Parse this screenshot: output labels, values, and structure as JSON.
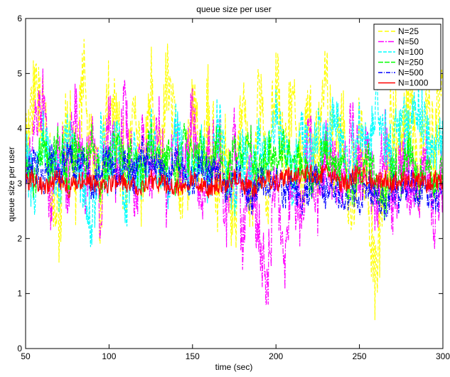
{
  "chart_data": {
    "type": "line",
    "title": "queue size per user",
    "xlabel": "time (sec)",
    "ylabel": "queue size per user",
    "xlim": [
      50,
      300
    ],
    "ylim": [
      0,
      6
    ],
    "xticks": [
      50,
      100,
      150,
      200,
      250,
      300
    ],
    "yticks": [
      0,
      1,
      2,
      3,
      4,
      5,
      6
    ],
    "grid": false,
    "legend_position": "top-right",
    "series": [
      {
        "name": "N=25",
        "color": "#ffff00",
        "dash": "6,3",
        "x": [
          50,
          55,
          60,
          65,
          70,
          75,
          80,
          85,
          90,
          95,
          100,
          105,
          110,
          115,
          120,
          125,
          130,
          135,
          140,
          145,
          150,
          155,
          160,
          165,
          170,
          175,
          180,
          185,
          190,
          195,
          200,
          205,
          210,
          215,
          220,
          225,
          230,
          235,
          240,
          245,
          250,
          255,
          260,
          265,
          270,
          275,
          280,
          285,
          290,
          295,
          300
        ],
        "y": [
          3.6,
          4.8,
          4.2,
          3.0,
          2.4,
          4.4,
          3.1,
          4.9,
          3.5,
          2.7,
          4.6,
          3.8,
          3.2,
          4.1,
          2.9,
          4.7,
          3.3,
          5.0,
          3.6,
          2.8,
          4.2,
          3.5,
          4.5,
          3.0,
          3.7,
          2.2,
          4.3,
          2.6,
          4.9,
          2.9,
          5.1,
          3.4,
          4.4,
          3.1,
          4.0,
          3.6,
          4.8,
          3.2,
          4.1,
          2.7,
          3.9,
          3.1,
          1.0,
          3.5,
          4.2,
          3.3,
          4.6,
          3.0,
          4.4,
          3.6,
          4.9
        ]
      },
      {
        "name": "N=50",
        "color": "#ff00ff",
        "dash": "8,2,2,2",
        "x": [
          50,
          55,
          60,
          65,
          70,
          75,
          80,
          85,
          90,
          95,
          100,
          105,
          110,
          115,
          120,
          125,
          130,
          135,
          140,
          145,
          150,
          155,
          160,
          165,
          170,
          175,
          180,
          185,
          190,
          195,
          200,
          205,
          210,
          215,
          220,
          225,
          230,
          235,
          240,
          245,
          250,
          255,
          260,
          265,
          270,
          275,
          280,
          285,
          290,
          295,
          300
        ],
        "y": [
          3.2,
          4.1,
          4.6,
          2.6,
          3.7,
          3.0,
          4.3,
          2.9,
          3.9,
          2.5,
          4.2,
          3.1,
          4.5,
          2.8,
          3.6,
          3.3,
          4.0,
          2.7,
          3.8,
          3.1,
          4.2,
          2.8,
          3.5,
          3.9,
          2.4,
          3.7,
          1.8,
          3.4,
          2.0,
          1.2,
          3.3,
          1.6,
          3.0,
          2.4,
          3.8,
          2.6,
          3.5,
          3.1,
          2.9,
          4.0,
          3.2,
          3.6,
          2.5,
          3.9,
          2.7,
          3.4,
          3.0,
          2.8,
          3.6,
          2.4,
          3.1
        ]
      },
      {
        "name": "N=100",
        "color": "#00ffff",
        "dash": "5,2",
        "x": [
          50,
          55,
          60,
          65,
          70,
          75,
          80,
          85,
          90,
          95,
          100,
          105,
          110,
          115,
          120,
          125,
          130,
          135,
          140,
          145,
          150,
          155,
          160,
          165,
          170,
          175,
          180,
          185,
          190,
          195,
          200,
          205,
          210,
          215,
          220,
          225,
          230,
          235,
          240,
          245,
          250,
          255,
          260,
          265,
          270,
          275,
          280,
          285,
          290,
          295,
          300
        ],
        "y": [
          3.5,
          2.8,
          3.9,
          3.3,
          2.9,
          4.1,
          3.4,
          3.0,
          2.2,
          3.8,
          3.2,
          4.0,
          2.6,
          3.6,
          3.1,
          3.9,
          3.3,
          2.9,
          4.0,
          3.5,
          3.2,
          3.7,
          3.0,
          4.1,
          3.4,
          2.8,
          3.6,
          3.1,
          3.8,
          3.3,
          4.2,
          3.5,
          3.1,
          3.9,
          3.4,
          4.0,
          3.6,
          4.3,
          3.8,
          3.5,
          4.1,
          3.7,
          4.4,
          3.9,
          3.6,
          4.2,
          3.8,
          4.5,
          3.9,
          3.7,
          4.0
        ]
      },
      {
        "name": "N=250",
        "color": "#00ff00",
        "dash": "7,2",
        "x": [
          50,
          55,
          60,
          65,
          70,
          75,
          80,
          85,
          90,
          95,
          100,
          105,
          110,
          115,
          120,
          125,
          130,
          135,
          140,
          145,
          150,
          155,
          160,
          165,
          170,
          175,
          180,
          185,
          190,
          195,
          200,
          205,
          210,
          215,
          220,
          225,
          230,
          235,
          240,
          245,
          250,
          255,
          260,
          265,
          270,
          275,
          280,
          285,
          290,
          295,
          300
        ],
        "y": [
          3.4,
          3.0,
          3.7,
          3.2,
          3.9,
          3.1,
          3.6,
          3.3,
          3.8,
          2.9,
          3.5,
          3.7,
          3.2,
          3.6,
          3.0,
          3.8,
          3.3,
          3.5,
          3.1,
          3.7,
          3.4,
          3.6,
          3.2,
          3.9,
          3.0,
          3.5,
          3.3,
          3.7,
          3.1,
          3.6,
          3.4,
          3.8,
          3.2,
          3.5,
          2.9,
          3.3,
          3.6,
          3.1,
          3.4,
          2.8,
          3.2,
          3.5,
          3.0,
          2.7,
          3.3,
          3.1,
          3.6,
          2.9,
          3.4,
          3.0,
          3.2
        ]
      },
      {
        "name": "N=500",
        "color": "#0000ff",
        "dash": "6,2,1,2",
        "x": [
          50,
          55,
          60,
          65,
          70,
          75,
          80,
          85,
          90,
          95,
          100,
          105,
          110,
          115,
          120,
          125,
          130,
          135,
          140,
          145,
          150,
          155,
          160,
          165,
          170,
          175,
          180,
          185,
          190,
          195,
          200,
          205,
          210,
          215,
          220,
          225,
          230,
          235,
          240,
          245,
          250,
          255,
          260,
          265,
          270,
          275,
          280,
          285,
          290,
          295,
          300
        ],
        "y": [
          3.2,
          3.4,
          3.0,
          3.5,
          3.1,
          3.6,
          3.2,
          3.4,
          2.9,
          3.3,
          3.5,
          3.0,
          3.4,
          3.1,
          3.6,
          3.2,
          3.3,
          2.9,
          3.5,
          3.2,
          3.0,
          3.4,
          3.1,
          3.3,
          2.8,
          3.2,
          3.0,
          2.7,
          3.1,
          2.9,
          3.2,
          2.8,
          3.0,
          2.7,
          2.9,
          3.1,
          2.8,
          3.0,
          2.6,
          2.9,
          2.7,
          3.0,
          2.8,
          2.6,
          2.9,
          2.7,
          3.0,
          2.8,
          2.9,
          2.7,
          2.9
        ]
      },
      {
        "name": "N=1000",
        "color": "#ff0000",
        "dash": "",
        "x": [
          50,
          55,
          60,
          65,
          70,
          75,
          80,
          85,
          90,
          95,
          100,
          105,
          110,
          115,
          120,
          125,
          130,
          135,
          140,
          145,
          150,
          155,
          160,
          165,
          170,
          175,
          180,
          185,
          190,
          195,
          200,
          205,
          210,
          215,
          220,
          225,
          230,
          235,
          240,
          245,
          250,
          255,
          260,
          265,
          270,
          275,
          280,
          285,
          290,
          295,
          300
        ],
        "y": [
          3.0,
          3.1,
          2.9,
          3.0,
          3.1,
          2.9,
          3.0,
          3.1,
          3.0,
          2.9,
          3.0,
          3.1,
          3.0,
          3.0,
          2.9,
          3.1,
          3.0,
          3.0,
          2.9,
          3.0,
          3.1,
          3.0,
          2.9,
          3.0,
          3.0,
          3.1,
          3.0,
          2.9,
          3.0,
          3.1,
          3.0,
          3.1,
          3.2,
          3.1,
          3.2,
          3.1,
          3.2,
          3.1,
          3.0,
          3.1,
          3.2,
          3.1,
          3.0,
          3.1,
          3.0,
          3.1,
          3.0,
          3.1,
          3.0,
          3.1,
          3.0
        ]
      }
    ]
  }
}
